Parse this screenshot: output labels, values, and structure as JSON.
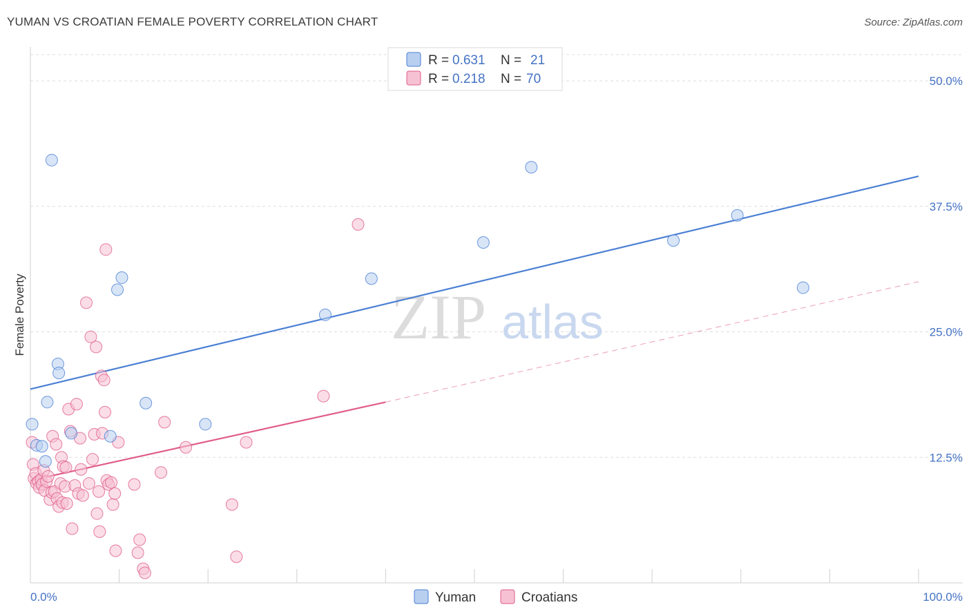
{
  "title": "YUMAN VS CROATIAN FEMALE POVERTY CORRELATION CHART",
  "source": "Source: ZipAtlas.com",
  "chart_data": {
    "type": "scatter",
    "xlabel": "",
    "ylabel": "Female Poverty",
    "xlim": [
      0,
      100
    ],
    "ylim": [
      0,
      52
    ],
    "x_tick_labels": [
      "0.0%",
      "100.0%"
    ],
    "y_ticks": [
      12.5,
      25.0,
      37.5,
      50.0
    ],
    "y_tick_labels": [
      "12.5%",
      "25.0%",
      "37.5%",
      "50.0%"
    ],
    "watermark": {
      "part1": "ZIP",
      "part2": "atlas"
    },
    "legend": {
      "r_label": "R =",
      "n_label": "N =",
      "rows": [
        {
          "r": "0.631",
          "n": "21"
        },
        {
          "r": "0.218",
          "n": "70"
        }
      ]
    },
    "series": [
      {
        "name": "Yuman",
        "color": "#4a7fd4",
        "fill": "#b8cff0",
        "trend": {
          "x": [
            0,
            100
          ],
          "y": [
            19.3,
            40.5
          ],
          "style": "solid"
        },
        "points": [
          [
            0.2,
            15.8
          ],
          [
            2.4,
            42.1
          ],
          [
            3.1,
            21.8
          ],
          [
            3.2,
            20.9
          ],
          [
            1.9,
            18.0
          ],
          [
            0.7,
            13.7
          ],
          [
            1.3,
            13.6
          ],
          [
            1.7,
            12.1
          ],
          [
            4.6,
            14.9
          ],
          [
            9.0,
            14.6
          ],
          [
            9.8,
            29.2
          ],
          [
            10.3,
            30.4
          ],
          [
            13.0,
            17.9
          ],
          [
            19.7,
            15.8
          ],
          [
            33.2,
            26.7
          ],
          [
            38.4,
            30.3
          ],
          [
            51.0,
            33.9
          ],
          [
            56.4,
            41.4
          ],
          [
            72.4,
            34.1
          ],
          [
            79.6,
            36.6
          ],
          [
            87.0,
            29.4
          ]
        ]
      },
      {
        "name": "Croatians",
        "color": "#e05c8a",
        "fill": "#f6c1d3",
        "trend": {
          "x": [
            0,
            40
          ],
          "y": [
            10.2,
            18.0
          ],
          "style": "solid"
        },
        "trend_ext": {
          "x": [
            40,
            100
          ],
          "y": [
            18.0,
            30.0
          ],
          "style": "dashed"
        },
        "points": [
          [
            0.2,
            14.0
          ],
          [
            0.3,
            11.8
          ],
          [
            0.4,
            10.4
          ],
          [
            0.6,
            10.9
          ],
          [
            0.7,
            9.9
          ],
          [
            0.9,
            10.1
          ],
          [
            1.0,
            9.5
          ],
          [
            1.2,
            10.3
          ],
          [
            1.3,
            9.8
          ],
          [
            1.5,
            11.2
          ],
          [
            1.6,
            9.2
          ],
          [
            1.8,
            10.1
          ],
          [
            2.0,
            10.6
          ],
          [
            2.2,
            8.3
          ],
          [
            2.4,
            9.0
          ],
          [
            2.5,
            14.6
          ],
          [
            2.7,
            9.1
          ],
          [
            2.9,
            13.8
          ],
          [
            3.0,
            8.4
          ],
          [
            3.2,
            7.6
          ],
          [
            3.4,
            9.9
          ],
          [
            3.5,
            12.5
          ],
          [
            3.6,
            8.0
          ],
          [
            3.7,
            11.6
          ],
          [
            3.9,
            9.6
          ],
          [
            4.0,
            11.5
          ],
          [
            4.1,
            7.9
          ],
          [
            4.3,
            17.3
          ],
          [
            4.5,
            15.1
          ],
          [
            4.7,
            5.4
          ],
          [
            5.0,
            9.7
          ],
          [
            5.2,
            17.8
          ],
          [
            5.4,
            8.9
          ],
          [
            5.6,
            14.4
          ],
          [
            5.7,
            11.3
          ],
          [
            5.9,
            8.7
          ],
          [
            6.3,
            27.9
          ],
          [
            6.6,
            9.9
          ],
          [
            6.8,
            24.5
          ],
          [
            7.0,
            12.3
          ],
          [
            7.2,
            14.8
          ],
          [
            7.4,
            23.5
          ],
          [
            7.5,
            6.9
          ],
          [
            7.7,
            9.1
          ],
          [
            7.8,
            5.1
          ],
          [
            8.0,
            20.6
          ],
          [
            8.1,
            14.9
          ],
          [
            8.3,
            20.2
          ],
          [
            8.4,
            17.0
          ],
          [
            8.5,
            33.2
          ],
          [
            8.6,
            10.2
          ],
          [
            8.8,
            9.8
          ],
          [
            9.1,
            10.0
          ],
          [
            9.3,
            7.8
          ],
          [
            9.5,
            8.9
          ],
          [
            9.6,
            3.2
          ],
          [
            9.9,
            14.0
          ],
          [
            11.7,
            9.8
          ],
          [
            12.1,
            3.0
          ],
          [
            12.3,
            4.3
          ],
          [
            12.7,
            1.4
          ],
          [
            12.9,
            1.0
          ],
          [
            14.7,
            11.0
          ],
          [
            15.1,
            16.0
          ],
          [
            17.5,
            13.5
          ],
          [
            22.7,
            7.8
          ],
          [
            23.2,
            2.6
          ],
          [
            24.3,
            14.0
          ],
          [
            33.0,
            18.6
          ],
          [
            36.9,
            35.7
          ]
        ]
      }
    ]
  }
}
